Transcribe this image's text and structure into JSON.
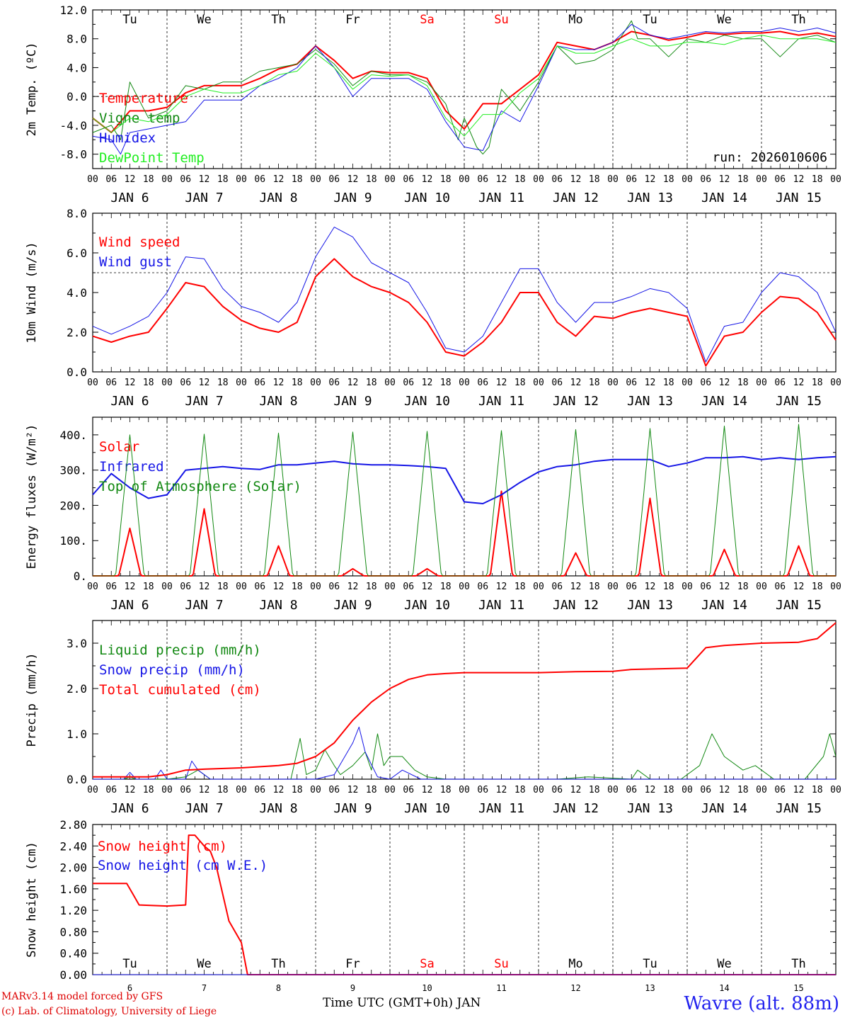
{
  "colors": {
    "red": "#ff0000",
    "green": "#118811",
    "blue": "#1515e6",
    "light_green": "#22ee22",
    "axis": "#000000",
    "credit": "#dd0000",
    "station": "#2222ee"
  },
  "days": {
    "weekdays": [
      "Tu",
      "We",
      "Th",
      "Fr",
      "Sa",
      "Su",
      "Mo",
      "Tu",
      "We",
      "Th"
    ],
    "weekend_flags": [
      false,
      false,
      false,
      false,
      true,
      true,
      false,
      false,
      false,
      false
    ],
    "dates": [
      "JAN 6",
      "JAN 7",
      "JAN 8",
      "JAN 9",
      "JAN 10",
      "JAN 11",
      "JAN 12",
      "JAN 13",
      "JAN 14",
      "JAN 15"
    ],
    "day_numbers": [
      "6",
      "7",
      "8",
      "9",
      "10",
      "11",
      "12",
      "13",
      "14",
      "15"
    ],
    "hours": [
      "00",
      "06",
      "12",
      "18"
    ],
    "end_hour": "00"
  },
  "footer": {
    "credit_line1": "MARv3.14 model forced by GFS",
    "credit_line2": "(c) Lab. of Climatology, University of Liege",
    "time_label": "Time UTC (GMT+0h) JAN",
    "station": "Wavre (alt. 88m)"
  },
  "chart_data": [
    {
      "id": "temperature",
      "type": "line",
      "ylabel": "2m Temp. (ºC)",
      "ylim": [
        -10,
        12
      ],
      "yticks": [
        -8,
        -4,
        0,
        4,
        8,
        12
      ],
      "ytick_labels": [
        "-8.0",
        "-4.0",
        "0.0",
        "4.0",
        "8.0",
        "12.0"
      ],
      "reference_line": 0,
      "annotation": "run: 2026010606",
      "x_unit": "hours since JAN 6 00 UTC",
      "series": [
        {
          "name": "Temperature",
          "color": "red",
          "width": 2,
          "x": [
            0,
            6,
            12,
            18,
            24,
            30,
            36,
            42,
            48,
            54,
            60,
            66,
            72,
            78,
            84,
            90,
            96,
            102,
            108,
            114,
            120,
            126,
            132,
            138,
            144,
            150,
            156,
            162,
            168,
            174,
            180,
            186,
            192,
            198,
            204,
            210,
            216,
            222,
            228,
            234,
            240
          ],
          "y": [
            -3.0,
            -5.0,
            -2.0,
            -2.0,
            -1.5,
            0.5,
            1.5,
            1.5,
            1.5,
            2.5,
            3.8,
            4.5,
            7.0,
            5.0,
            2.5,
            3.5,
            3.3,
            3.3,
            2.5,
            -2.0,
            -4.5,
            -1.0,
            -1.0,
            1.0,
            3.0,
            7.5,
            7.0,
            6.5,
            7.5,
            9.0,
            8.5,
            7.8,
            8.2,
            8.8,
            8.6,
            8.8,
            8.8,
            9.0,
            8.5,
            8.8,
            8.3
          ]
        },
        {
          "name": "Vigne temp",
          "color": "green",
          "width": 1,
          "x": [
            0,
            6,
            9,
            12,
            18,
            24,
            30,
            36,
            42,
            48,
            54,
            60,
            66,
            72,
            78,
            84,
            90,
            96,
            102,
            108,
            114,
            118,
            120,
            124,
            126,
            128,
            132,
            138,
            144,
            150,
            156,
            162,
            168,
            174,
            176,
            180,
            186,
            192,
            198,
            204,
            210,
            216,
            222,
            228,
            234,
            240
          ],
          "y": [
            -5.0,
            -4.0,
            -6.0,
            2.0,
            -3.0,
            -2.0,
            1.5,
            1.0,
            2.0,
            2.0,
            3.5,
            4.0,
            4.5,
            6.5,
            4.5,
            1.5,
            3.5,
            3.0,
            3.0,
            2.0,
            -1.0,
            -6.0,
            -3.0,
            -7.0,
            -8.0,
            -7.0,
            1.0,
            -2.0,
            2.0,
            7.0,
            4.5,
            5.0,
            6.5,
            10.5,
            8.0,
            8.0,
            5.5,
            8.0,
            7.5,
            8.5,
            8.0,
            8.0,
            5.5,
            8.0,
            8.5,
            7.5
          ]
        },
        {
          "name": "Humidex",
          "color": "blue",
          "width": 1,
          "x": [
            0,
            6,
            9,
            12,
            18,
            24,
            30,
            36,
            42,
            48,
            54,
            60,
            66,
            72,
            78,
            84,
            90,
            96,
            102,
            108,
            114,
            120,
            126,
            132,
            138,
            144,
            150,
            156,
            162,
            168,
            174,
            180,
            186,
            192,
            198,
            204,
            210,
            216,
            222,
            228,
            234,
            240
          ],
          "y": [
            -5.5,
            -6.0,
            -8.0,
            -5.0,
            -4.5,
            -4.0,
            -3.5,
            -0.5,
            -0.5,
            -0.5,
            1.5,
            2.5,
            4.0,
            7.0,
            4.0,
            0.0,
            2.5,
            2.5,
            2.5,
            1.0,
            -3.5,
            -7.0,
            -7.5,
            -2.0,
            -3.5,
            1.5,
            7.0,
            6.5,
            6.5,
            7.5,
            10.0,
            8.5,
            8.0,
            8.5,
            9.0,
            8.8,
            9.0,
            9.0,
            9.5,
            9.0,
            9.5,
            8.8
          ]
        },
        {
          "name": "DewPoint Temp",
          "color": "light_green",
          "width": 1,
          "x": [
            0,
            6,
            12,
            18,
            24,
            30,
            36,
            42,
            48,
            54,
            60,
            66,
            72,
            78,
            84,
            90,
            96,
            102,
            108,
            114,
            120,
            126,
            132,
            138,
            144,
            150,
            156,
            162,
            168,
            174,
            180,
            186,
            192,
            198,
            204,
            210,
            216,
            222,
            228,
            234,
            240
          ],
          "y": [
            -3.0,
            -5.0,
            -3.0,
            -3.5,
            -2.5,
            0.0,
            1.0,
            0.5,
            0.5,
            1.5,
            3.0,
            3.5,
            6.0,
            4.0,
            1.0,
            3.0,
            2.8,
            3.0,
            1.5,
            -3.0,
            -5.5,
            -2.5,
            -2.5,
            0.5,
            2.5,
            7.0,
            6.0,
            6.0,
            7.0,
            8.0,
            7.0,
            7.0,
            7.5,
            7.5,
            7.2,
            8.0,
            8.5,
            8.0,
            8.0,
            8.0,
            7.5
          ]
        }
      ]
    },
    {
      "id": "wind",
      "type": "line",
      "ylabel": "10m Wind (m/s)",
      "ylim": [
        0,
        8
      ],
      "yticks": [
        0,
        2,
        4,
        6,
        8
      ],
      "ytick_labels": [
        "0.0",
        "2.0",
        "4.0",
        "6.0",
        "8.0"
      ],
      "reference_line": 5,
      "x_unit": "hours since JAN 6 00 UTC",
      "series": [
        {
          "name": "Wind speed",
          "color": "red",
          "width": 2,
          "x": [
            0,
            6,
            12,
            18,
            24,
            30,
            36,
            42,
            48,
            54,
            60,
            66,
            72,
            78,
            84,
            90,
            96,
            102,
            108,
            114,
            120,
            126,
            132,
            138,
            144,
            150,
            156,
            162,
            168,
            174,
            180,
            186,
            192,
            198,
            204,
            210,
            216,
            222,
            228,
            234,
            240
          ],
          "y": [
            1.8,
            1.5,
            1.8,
            2.0,
            3.2,
            4.5,
            4.3,
            3.3,
            2.6,
            2.2,
            2.0,
            2.5,
            4.8,
            5.7,
            4.8,
            4.3,
            4.0,
            3.5,
            2.5,
            1.0,
            0.8,
            1.5,
            2.5,
            4.0,
            4.0,
            2.5,
            1.8,
            2.8,
            2.7,
            3.0,
            3.2,
            3.0,
            2.8,
            0.3,
            1.8,
            2.0,
            3.0,
            3.8,
            3.7,
            3.0,
            1.6
          ]
        },
        {
          "name": "Wind gust",
          "color": "blue",
          "width": 1,
          "x": [
            0,
            6,
            12,
            18,
            24,
            30,
            36,
            42,
            48,
            54,
            60,
            66,
            72,
            78,
            84,
            90,
            96,
            102,
            108,
            114,
            120,
            126,
            132,
            138,
            144,
            150,
            156,
            162,
            168,
            174,
            180,
            186,
            192,
            198,
            204,
            210,
            216,
            222,
            228,
            234,
            240
          ],
          "y": [
            2.3,
            1.9,
            2.3,
            2.8,
            4.0,
            5.8,
            5.7,
            4.2,
            3.3,
            3.0,
            2.5,
            3.5,
            5.8,
            7.3,
            6.8,
            5.5,
            5.0,
            4.5,
            3.0,
            1.2,
            1.0,
            1.8,
            3.5,
            5.2,
            5.2,
            3.5,
            2.5,
            3.5,
            3.5,
            3.8,
            4.2,
            4.0,
            3.2,
            0.5,
            2.3,
            2.5,
            4.0,
            5.0,
            4.8,
            4.0,
            2.0
          ]
        }
      ]
    },
    {
      "id": "energy",
      "type": "line",
      "ylabel": "Energy fluxes (W/m²)",
      "ylim": [
        0,
        450
      ],
      "yticks": [
        0,
        100,
        200,
        300,
        400
      ],
      "ytick_labels": [
        "0.",
        "100.",
        "200.",
        "300.",
        "400."
      ],
      "x_unit": "hours since JAN 6 00 UTC",
      "solar_daily_peak": [
        135,
        190,
        85,
        20,
        20,
        240,
        65,
        220,
        75,
        85
      ],
      "toa_daily_peak": [
        400,
        402,
        405,
        408,
        410,
        412,
        415,
        418,
        425,
        430
      ],
      "series": [
        {
          "name": "Solar",
          "color": "red",
          "width": 2,
          "generated": "daily_pulse",
          "peak_key": "solar_daily_peak"
        },
        {
          "name": "Infrared",
          "color": "blue",
          "width": 2,
          "x": [
            0,
            6,
            12,
            18,
            24,
            30,
            36,
            42,
            48,
            54,
            60,
            66,
            72,
            78,
            84,
            90,
            96,
            102,
            108,
            114,
            120,
            126,
            132,
            138,
            144,
            150,
            156,
            162,
            168,
            174,
            180,
            186,
            192,
            198,
            204,
            210,
            216,
            222,
            228,
            234,
            240
          ],
          "y": [
            230,
            290,
            250,
            220,
            230,
            300,
            305,
            310,
            305,
            302,
            315,
            315,
            320,
            325,
            318,
            315,
            315,
            313,
            310,
            305,
            210,
            205,
            230,
            265,
            295,
            310,
            315,
            325,
            330,
            330,
            330,
            310,
            320,
            335,
            335,
            338,
            330,
            335,
            330,
            335,
            338
          ]
        },
        {
          "name": "Top of Atmosphere (Solar)",
          "color": "green",
          "width": 1,
          "generated": "daily_pulse",
          "peak_key": "toa_daily_peak"
        }
      ]
    },
    {
      "id": "precip",
      "type": "line",
      "ylabel": "Precip (mm/h)",
      "ylim": [
        0,
        3.5
      ],
      "yticks": [
        0,
        1,
        2,
        3
      ],
      "ytick_labels": [
        "0.0",
        "1.0",
        "2.0",
        "3.0"
      ],
      "x_unit": "hours since JAN 6 00 UTC",
      "series": [
        {
          "name": "Liquid precip (mm/h)",
          "color": "green",
          "width": 1,
          "x": [
            0,
            10,
            12,
            14,
            24,
            30,
            34,
            38,
            48,
            64,
            67,
            69,
            72,
            75,
            78,
            80,
            84,
            88,
            90,
            92,
            94,
            96,
            100,
            104,
            108,
            114,
            130,
            144,
            150,
            160,
            174,
            176,
            180,
            190,
            196,
            200,
            204,
            210,
            214,
            220,
            230,
            236,
            238,
            240
          ],
          "y": [
            0.0,
            0.0,
            0.05,
            0.0,
            0.0,
            0.05,
            0.2,
            0.0,
            0.0,
            0.0,
            0.9,
            0.1,
            0.2,
            0.65,
            0.3,
            0.1,
            0.3,
            0.6,
            0.2,
            1.0,
            0.3,
            0.5,
            0.5,
            0.2,
            0.05,
            0.0,
            0.0,
            0.0,
            0.0,
            0.05,
            0.0,
            0.2,
            0.0,
            0.0,
            0.3,
            1.0,
            0.5,
            0.2,
            0.3,
            0.0,
            0.0,
            0.5,
            1.0,
            0.5
          ]
        },
        {
          "name": "Snow precip (mm/h)",
          "color": "blue",
          "width": 1,
          "x": [
            0,
            10,
            12,
            14,
            20,
            22,
            24,
            30,
            32,
            34,
            38,
            48,
            72,
            78,
            84,
            86,
            88,
            92,
            96,
            100,
            106,
            114,
            240
          ],
          "y": [
            0.0,
            0.0,
            0.15,
            0.0,
            0.0,
            0.2,
            0.0,
            0.0,
            0.4,
            0.2,
            0.0,
            0.0,
            0.0,
            0.1,
            0.8,
            1.15,
            0.6,
            0.05,
            0.0,
            0.2,
            0.0,
            0.0,
            0.0
          ]
        },
        {
          "name": "Total cumulated (cm)",
          "color": "red",
          "width": 2,
          "x": [
            0,
            12,
            18,
            24,
            30,
            36,
            48,
            60,
            66,
            72,
            78,
            84,
            90,
            96,
            102,
            108,
            114,
            120,
            132,
            144,
            156,
            168,
            174,
            180,
            192,
            198,
            204,
            216,
            228,
            234,
            240
          ],
          "y": [
            0.05,
            0.05,
            0.05,
            0.1,
            0.2,
            0.22,
            0.25,
            0.3,
            0.35,
            0.5,
            0.8,
            1.3,
            1.7,
            2.0,
            2.2,
            2.3,
            2.33,
            2.35,
            2.35,
            2.35,
            2.37,
            2.38,
            2.42,
            2.43,
            2.45,
            2.9,
            2.95,
            3.0,
            3.02,
            3.1,
            3.45
          ]
        }
      ]
    },
    {
      "id": "snow",
      "type": "line",
      "ylabel": "Snow height (cm)",
      "ylim": [
        0,
        2.8
      ],
      "yticks": [
        0,
        0.4,
        0.8,
        1.2,
        1.6,
        2.0,
        2.4,
        2.8
      ],
      "ytick_labels": [
        "0.00",
        "0.40",
        "0.80",
        "1.20",
        "1.60",
        "2.00",
        "2.40",
        "2.80"
      ],
      "x_unit": "hours since JAN 6 00 UTC",
      "series": [
        {
          "name": "Snow height (cm)",
          "color": "red",
          "width": 2,
          "x": [
            0,
            11,
            13,
            15,
            24,
            30,
            31,
            33,
            36,
            38,
            40,
            44,
            48,
            50,
            51,
            240
          ],
          "y": [
            1.7,
            1.7,
            1.5,
            1.3,
            1.28,
            1.3,
            2.6,
            2.6,
            2.4,
            2.3,
            2.0,
            1.0,
            0.6,
            0.0,
            0.0,
            0.0
          ]
        },
        {
          "name": "Snow height (cm W.E.)",
          "color": "blue",
          "width": 1,
          "x": [
            0,
            240
          ],
          "y": [
            0.0,
            0.0
          ]
        }
      ]
    }
  ]
}
